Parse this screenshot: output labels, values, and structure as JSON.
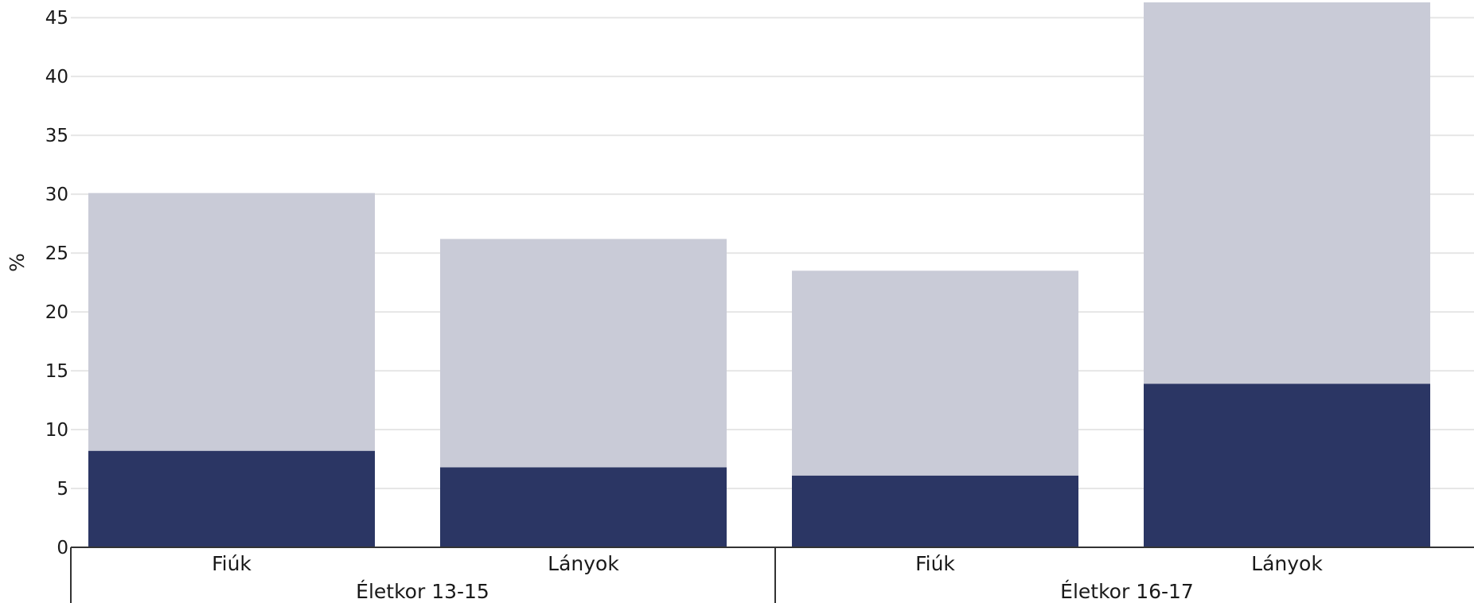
{
  "chart_data": {
    "type": "bar",
    "stacked": true,
    "ylabel": "%",
    "ylim": [
      0,
      46.5
    ],
    "yticks": [
      "0",
      "5",
      "10",
      "15",
      "20",
      "25",
      "30",
      "35",
      "40",
      "45"
    ],
    "grid": true,
    "groups": [
      {
        "label": "Életkor 13-15",
        "categories": [
          "Fiúk",
          "Lányok"
        ]
      },
      {
        "label": "Életkor 16-17",
        "categories": [
          "Fiúk",
          "Lányok"
        ]
      }
    ],
    "categories": [
      "Fiúk",
      "Lányok",
      "Fiúk",
      "Lányok"
    ],
    "series": [
      {
        "values": [
          8.2,
          6.8,
          6.1,
          13.9
        ],
        "color": "#2b3664"
      },
      {
        "values": [
          21.9,
          19.4,
          17.4,
          32.4
        ],
        "color": "#c9cbd7"
      }
    ]
  }
}
